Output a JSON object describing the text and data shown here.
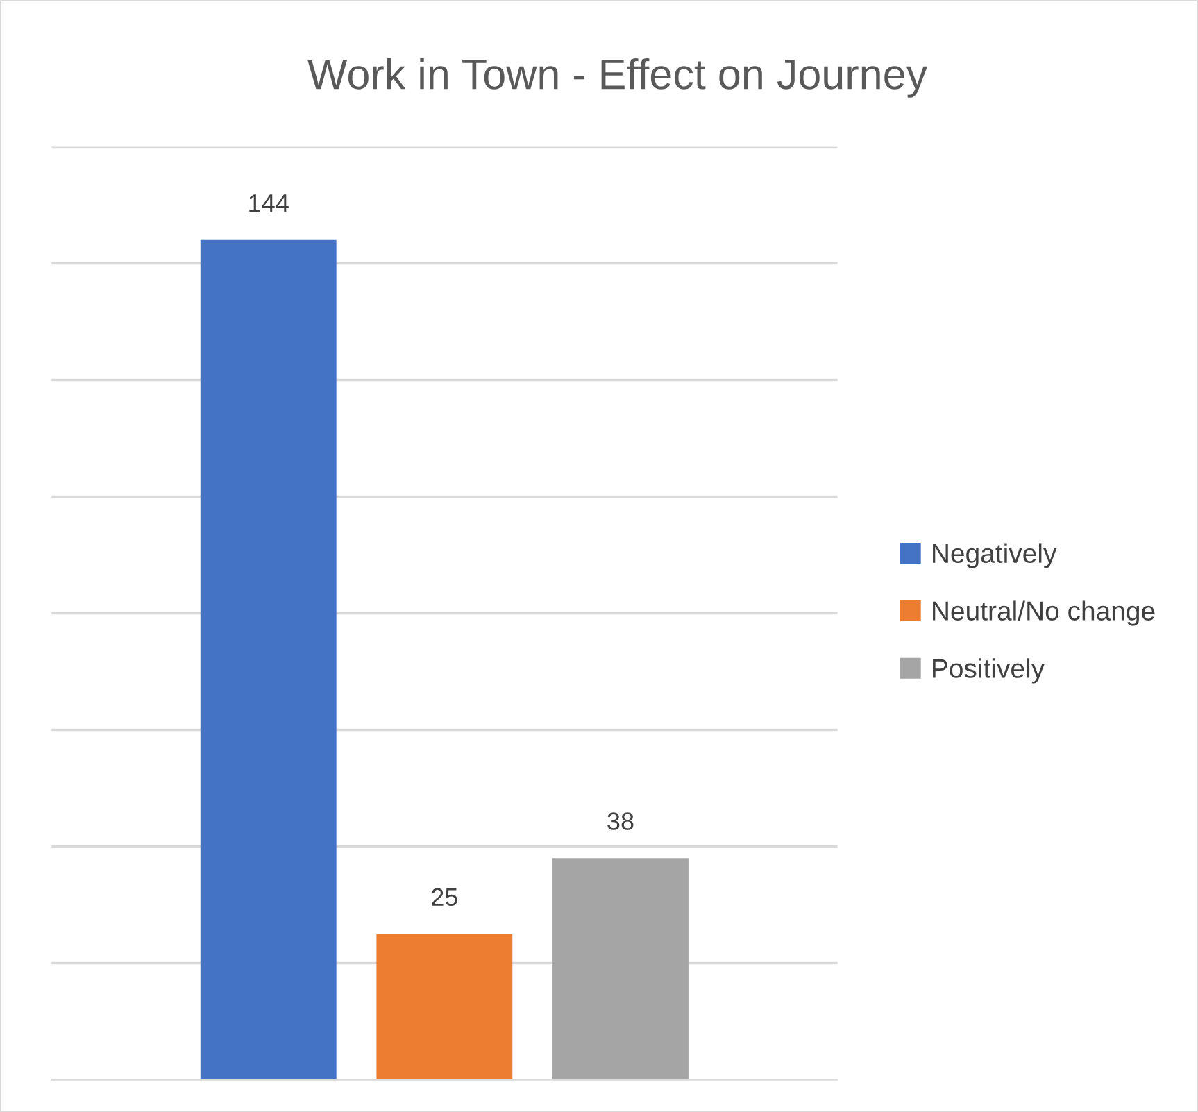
{
  "chart_data": {
    "type": "bar",
    "title": "Work in Town - Effect on Journey",
    "categories": [
      null
    ],
    "series": [
      {
        "name": "Negatively",
        "color": "#4472c4",
        "values": [
          144
        ]
      },
      {
        "name": "Neutral/No change",
        "color": "#ed7d31",
        "values": [
          25
        ]
      },
      {
        "name": "Positively",
        "color": "#a5a5a5",
        "values": [
          38
        ]
      }
    ],
    "ylim": [
      0,
      160
    ],
    "yticks": [
      {
        "value": 0,
        "label": null
      },
      {
        "value": 20,
        "label": null
      },
      {
        "value": 40,
        "label": null
      },
      {
        "value": 60,
        "label": null
      },
      {
        "value": 80,
        "label": null
      },
      {
        "value": 100,
        "label": null
      },
      {
        "value": 120,
        "label": null
      },
      {
        "value": 140,
        "label": null
      },
      {
        "value": 160,
        "label": null
      }
    ],
    "grid": "y",
    "legend": "right",
    "data_labels": true
  }
}
